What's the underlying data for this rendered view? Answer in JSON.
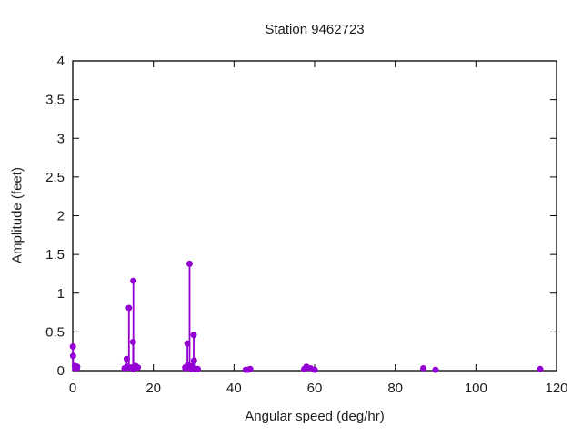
{
  "chart_data": {
    "type": "stem",
    "title": "Station 9462723",
    "xlabel": "Angular speed (deg/hr)",
    "ylabel": "Amplitude (feet)",
    "xlim": [
      0,
      120
    ],
    "ylim": [
      0,
      4
    ],
    "grid": false,
    "legend": null,
    "axes": {
      "frame": "box",
      "ticks_mirrored": true,
      "frame_color": "#000000",
      "text_color": "#1c1c1c"
    },
    "xticks": {
      "values": [
        0,
        20,
        40,
        60,
        80,
        100,
        120
      ],
      "labels": [
        "0",
        "20",
        "40",
        "60",
        "80",
        "100",
        "120"
      ]
    },
    "yticks": {
      "values": [
        0,
        0.5,
        1,
        1.5,
        2,
        2.5,
        3,
        3.5,
        4
      ],
      "labels": [
        "0",
        "0.5",
        "1",
        "1.5",
        "2",
        "2.5",
        "3",
        "3.5",
        "4"
      ]
    },
    "series": [
      {
        "name": "amplitude",
        "color": "#9400d3",
        "marker": "filled-circle",
        "stems": true,
        "points": [
          [
            0.04,
            0.31
          ],
          [
            0.08,
            0.19
          ],
          [
            0.54,
            0.06
          ],
          [
            1.02,
            0.03
          ],
          [
            1.1,
            0.05
          ],
          [
            12.85,
            0.03
          ],
          [
            13.4,
            0.15
          ],
          [
            13.47,
            0.05
          ],
          [
            13.94,
            0.81
          ],
          [
            14.5,
            0.04
          ],
          [
            14.96,
            0.37
          ],
          [
            15.0,
            0.02
          ],
          [
            15.04,
            1.16
          ],
          [
            15.59,
            0.06
          ],
          [
            16.14,
            0.04
          ],
          [
            27.9,
            0.04
          ],
          [
            27.97,
            0.03
          ],
          [
            28.44,
            0.35
          ],
          [
            28.51,
            0.07
          ],
          [
            28.98,
            1.38
          ],
          [
            29.46,
            0.02
          ],
          [
            29.53,
            0.06
          ],
          [
            29.96,
            0.03
          ],
          [
            30.0,
            0.46
          ],
          [
            30.04,
            0.02
          ],
          [
            30.08,
            0.13
          ],
          [
            31.02,
            0.02
          ],
          [
            42.93,
            0.01
          ],
          [
            43.48,
            0.01
          ],
          [
            44.03,
            0.02
          ],
          [
            57.42,
            0.02
          ],
          [
            57.97,
            0.05
          ],
          [
            58.98,
            0.03
          ],
          [
            60.0,
            0.01
          ],
          [
            86.95,
            0.03
          ],
          [
            90.0,
            0.01
          ],
          [
            115.94,
            0.02
          ]
        ]
      }
    ]
  }
}
